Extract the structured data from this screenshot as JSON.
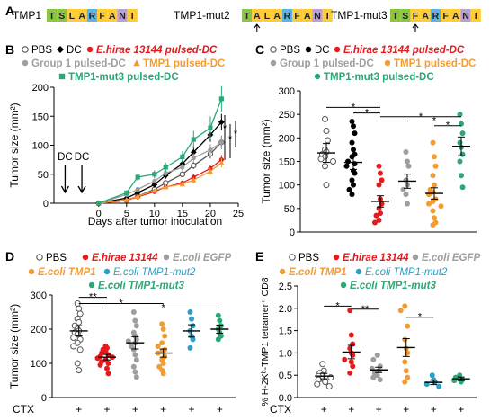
{
  "panel_letters": [
    "A",
    "B",
    "C",
    "D",
    "E"
  ],
  "panel_a": {
    "peptides": [
      {
        "name": "TMP1",
        "residues": [
          "T",
          "S",
          "L",
          "A",
          "R",
          "F",
          "A",
          "N",
          "I"
        ],
        "mutated_index": null
      },
      {
        "name": "TMP1-mut2",
        "residues": [
          "T",
          "A",
          "L",
          "A",
          "R",
          "F",
          "A",
          "N",
          "I"
        ],
        "mutated_index": 1
      },
      {
        "name": "TMP1-mut3",
        "residues": [
          "T",
          "S",
          "F",
          "A",
          "R",
          "F",
          "A",
          "N",
          "I"
        ],
        "mutated_index": 2
      }
    ],
    "residue_colors": {
      "T": "#8cc63f",
      "S": "#8cc63f",
      "A": "#ffcc33",
      "L": "#ffcc33",
      "F": "#ffcc33",
      "I": "#ffcc33",
      "R": "#5ab4e8",
      "N": "#b9a0d2"
    }
  },
  "panel_b": {
    "legend": [
      {
        "label": "PBS",
        "marker": "open-circle",
        "color": "#555555",
        "style": "normal"
      },
      {
        "label": "DC",
        "marker": "filled-diamond",
        "color": "#000000",
        "style": "normal"
      },
      {
        "label": "E.hirae 13144 pulsed-DC",
        "marker": "filled-circle",
        "color": "#e41a1c",
        "style": "bold-italic"
      },
      {
        "label": "Group 1 pulsed-DC",
        "marker": "filled-circle",
        "color": "#9e9e9e",
        "style": "bold"
      },
      {
        "label": "TMP1 pulsed-DC",
        "marker": "filled-triangle",
        "color": "#f39c34",
        "style": "bold"
      },
      {
        "label": "TMP1-mut3 pulsed-DC",
        "marker": "filled-square",
        "color": "#2aa876",
        "style": "bold"
      }
    ],
    "dc_label": "DC",
    "significance": [
      "*",
      "*",
      "*"
    ]
  },
  "panel_c": {
    "legend": [
      {
        "label": "PBS",
        "marker": "open-circle",
        "color": "#555555",
        "style": "normal"
      },
      {
        "label": "DC",
        "marker": "filled-circle",
        "color": "#000000",
        "style": "normal"
      },
      {
        "label": "E.hirae 13144 pulsed-DC",
        "marker": "filled-circle",
        "color": "#e41a1c",
        "style": "bold-italic"
      },
      {
        "label": "Group 1 pulsed-DC",
        "marker": "filled-circle",
        "color": "#9e9e9e",
        "style": "bold"
      },
      {
        "label": "TMP1 pulsed-DC",
        "marker": "filled-circle",
        "color": "#f39c34",
        "style": "bold"
      },
      {
        "label": "TMP1-mut3 pulsed-DC",
        "marker": "filled-circle",
        "color": "#2aa876",
        "style": "bold"
      }
    ],
    "significance": [
      "*",
      "*",
      "*",
      "*",
      "*"
    ]
  },
  "panel_d": {
    "legend": [
      {
        "label": "PBS",
        "marker": "open-circle",
        "color": "#555555",
        "style": "normal"
      },
      {
        "label": "E.hirae 13144",
        "marker": "filled-circle",
        "color": "#e41a1c",
        "style": "bold-italic"
      },
      {
        "label": "E.coli EGFP",
        "marker": "filled-circle",
        "color": "#9e9e9e",
        "style": "bold-italic"
      },
      {
        "label": "E.coli TMP1",
        "marker": "filled-circle",
        "color": "#f39c34",
        "style": "bold-italic"
      },
      {
        "label": "E.coli TMP1-mut2",
        "marker": "filled-circle",
        "color": "#2b9fc4",
        "style": "italic"
      },
      {
        "label": "E.coli TMP1-mut3",
        "marker": "filled-circle",
        "color": "#2aa876",
        "style": "bold-italic"
      }
    ],
    "significance": [
      "**",
      "*",
      "*"
    ],
    "ctx_label": "CTX",
    "ctx_marks": [
      "+",
      "+",
      "+",
      "+",
      "+",
      "+"
    ]
  },
  "panel_e": {
    "legend": [
      {
        "label": "PBS",
        "marker": "open-circle",
        "color": "#555555",
        "style": "normal"
      },
      {
        "label": "E.hirae 13144",
        "marker": "filled-circle",
        "color": "#e41a1c",
        "style": "bold-italic"
      },
      {
        "label": "E.coli EGFP",
        "marker": "filled-circle",
        "color": "#9e9e9e",
        "style": "bold-italic"
      },
      {
        "label": "E.coli TMP1",
        "marker": "filled-circle",
        "color": "#f39c34",
        "style": "bold-italic"
      },
      {
        "label": "E.coli TMP1-mut2",
        "marker": "filled-circle",
        "color": "#2b9fc4",
        "style": "italic"
      },
      {
        "label": "E.coli TMP1-mut3",
        "marker": "filled-circle",
        "color": "#2aa876",
        "style": "bold-italic"
      }
    ],
    "significance": [
      "*",
      "**",
      "*"
    ],
    "ctx_label": "CTX",
    "ctx_marks": [
      "+",
      "+",
      "+",
      "+",
      "+",
      "+"
    ]
  },
  "chart_data": [
    {
      "panel": "B",
      "type": "line",
      "xlabel": "Days after tumor inoculation",
      "ylabel": "Tumor size (mm²)",
      "xlim": [
        -8,
        25
      ],
      "ylim": [
        0,
        200
      ],
      "xticks": [
        0,
        5,
        10,
        15,
        20,
        25
      ],
      "yticks": [
        0,
        50,
        100,
        150,
        200
      ],
      "dc_injection_days": [
        -6,
        -3
      ],
      "series": [
        {
          "name": "PBS",
          "color": "#555555",
          "x": [
            0,
            5,
            7,
            10,
            12,
            15,
            17,
            20,
            22
          ],
          "y": [
            0,
            5,
            12,
            24,
            35,
            50,
            65,
            85,
            105
          ],
          "err": [
            0,
            1,
            2,
            3,
            4,
            5,
            6,
            8,
            10
          ]
        },
        {
          "name": "DC",
          "color": "#000000",
          "x": [
            0,
            5,
            7,
            10,
            12,
            15,
            17,
            20,
            22
          ],
          "y": [
            0,
            9,
            18,
            32,
            48,
            68,
            88,
            118,
            140
          ],
          "err": [
            0,
            2,
            3,
            4,
            6,
            8,
            10,
            12,
            14
          ]
        },
        {
          "name": "E.hirae 13144 pulsed-DC",
          "color": "#e41a1c",
          "x": [
            0,
            5,
            7,
            10,
            12,
            15,
            17,
            20,
            22
          ],
          "y": [
            0,
            5,
            11,
            20,
            28,
            35,
            45,
            60,
            75
          ],
          "err": [
            0,
            1,
            2,
            3,
            3,
            4,
            5,
            6,
            8
          ]
        },
        {
          "name": "Group 1 pulsed-DC",
          "color": "#9e9e9e",
          "x": [
            0,
            5,
            7,
            10,
            12,
            15,
            17,
            20,
            22
          ],
          "y": [
            0,
            15,
            24,
            38,
            52,
            62,
            78,
            92,
            105
          ],
          "err": [
            0,
            2,
            3,
            4,
            5,
            6,
            8,
            10,
            12
          ]
        },
        {
          "name": "TMP1 pulsed-DC",
          "color": "#f39c34",
          "x": [
            0,
            5,
            7,
            10,
            12,
            15,
            17,
            20,
            22
          ],
          "y": [
            0,
            6,
            12,
            22,
            28,
            33,
            40,
            55,
            70
          ],
          "err": [
            0,
            1,
            2,
            2,
            3,
            4,
            4,
            6,
            8
          ]
        },
        {
          "name": "TMP1-mut3 pulsed-DC",
          "color": "#2aa876",
          "x": [
            0,
            5,
            7,
            10,
            12,
            15,
            17,
            20,
            22
          ],
          "y": [
            0,
            18,
            45,
            50,
            62,
            80,
            110,
            130,
            180
          ],
          "err": [
            0,
            3,
            6,
            7,
            8,
            10,
            15,
            20,
            22
          ]
        }
      ]
    },
    {
      "panel": "C",
      "type": "scatter",
      "ylabel": "Tumor size (mm²)",
      "ylim": [
        0,
        300
      ],
      "yticks": [
        0,
        50,
        100,
        150,
        200,
        250,
        300
      ],
      "groups": [
        {
          "name": "PBS",
          "color": "#555555",
          "open": true,
          "mean": 168,
          "sem": 20,
          "values": [
            240,
            215,
            195,
            175,
            170,
            165,
            160,
            155,
            150,
            140,
            100
          ]
        },
        {
          "name": "DC",
          "color": "#000000",
          "open": false,
          "mean": 148,
          "sem": 15,
          "values": [
            235,
            225,
            210,
            190,
            175,
            165,
            160,
            150,
            145,
            140,
            130,
            125,
            110,
            100,
            90,
            80
          ]
        },
        {
          "name": "E.hirae 13144 pulsed-DC",
          "color": "#e41a1c",
          "open": false,
          "mean": 65,
          "sem": 12,
          "values": [
            140,
            125,
            110,
            100,
            70,
            60,
            50,
            40,
            35,
            25,
            20
          ]
        },
        {
          "name": "Group 1 pulsed-DC",
          "color": "#9e9e9e",
          "open": false,
          "mean": 108,
          "sem": 15,
          "values": [
            170,
            150,
            140,
            110,
            100,
            90,
            80,
            60
          ]
        },
        {
          "name": "TMP1 pulsed-DC",
          "color": "#f39c34",
          "open": false,
          "mean": 82,
          "sem": 12,
          "values": [
            190,
            160,
            140,
            120,
            100,
            90,
            85,
            80,
            70,
            65,
            60,
            55,
            45,
            30,
            20,
            15
          ]
        },
        {
          "name": "TMP1-mut3 pulsed-DC",
          "color": "#2aa876",
          "open": false,
          "mean": 182,
          "sem": 20,
          "values": [
            250,
            230,
            210,
            190,
            180,
            165,
            150,
            120,
            95
          ]
        }
      ]
    },
    {
      "panel": "D",
      "type": "scatter",
      "ylabel": "Tumor size (mm²)",
      "ylim": [
        0,
        300
      ],
      "yticks": [
        0,
        100,
        200,
        300
      ],
      "groups": [
        {
          "name": "PBS",
          "color": "#555555",
          "open": true,
          "mean": 195,
          "sem": 15,
          "values": [
            275,
            260,
            245,
            230,
            220,
            210,
            200,
            195,
            190,
            185,
            175,
            170,
            160,
            150,
            140,
            100,
            80
          ]
        },
        {
          "name": "E.hirae 13144",
          "color": "#e41a1c",
          "open": false,
          "mean": 118,
          "sem": 8,
          "values": [
            150,
            145,
            140,
            135,
            130,
            125,
            120,
            118,
            115,
            110,
            105,
            100,
            95,
            85,
            70
          ]
        },
        {
          "name": "E.coli EGFP",
          "color": "#9e9e9e",
          "open": false,
          "mean": 160,
          "sem": 18,
          "values": [
            250,
            225,
            210,
            190,
            180,
            170,
            165,
            160,
            150,
            140,
            125,
            110,
            90,
            75,
            60
          ]
        },
        {
          "name": "E.coli TMP1",
          "color": "#f39c34",
          "open": false,
          "mean": 130,
          "sem": 12,
          "values": [
            215,
            200,
            180,
            160,
            150,
            140,
            135,
            130,
            120,
            110,
            100,
            90,
            80,
            70
          ]
        },
        {
          "name": "E.coli TMP1-mut2",
          "color": "#2b9fc4",
          "open": false,
          "mean": 195,
          "sem": 18,
          "values": [
            250,
            230,
            210,
            195,
            180,
            170,
            145
          ]
        },
        {
          "name": "E.coli TMP1-mut3",
          "color": "#2aa876",
          "open": false,
          "mean": 200,
          "sem": 12,
          "values": [
            240,
            225,
            210,
            200,
            190,
            180,
            170
          ]
        }
      ]
    },
    {
      "panel": "E",
      "type": "scatter",
      "ylabel": "% H-2Kᵇ-TMP1 tetramer⁺ CD8",
      "ylim": [
        0,
        2.5
      ],
      "yticks": [
        0.0,
        0.5,
        1.0,
        1.5,
        2.0,
        2.5
      ],
      "groups": [
        {
          "name": "PBS",
          "color": "#555555",
          "open": true,
          "mean": 0.48,
          "sem": 0.06,
          "values": [
            0.75,
            0.6,
            0.55,
            0.5,
            0.48,
            0.45,
            0.42,
            0.4,
            0.35,
            0.3,
            0.25
          ]
        },
        {
          "name": "E.hirae 13144",
          "color": "#e41a1c",
          "open": false,
          "mean": 1.02,
          "sem": 0.15,
          "values": [
            1.95,
            1.4,
            1.2,
            1.1,
            1.0,
            0.95,
            0.85,
            0.8,
            0.7,
            0.55
          ]
        },
        {
          "name": "E.coli EGFP",
          "color": "#9e9e9e",
          "open": false,
          "mean": 0.62,
          "sem": 0.06,
          "values": [
            0.95,
            0.85,
            0.7,
            0.65,
            0.6,
            0.55,
            0.5,
            0.45,
            0.4
          ]
        },
        {
          "name": "E.coli TMP1",
          "color": "#f39c34",
          "open": false,
          "mean": 1.12,
          "sem": 0.2,
          "values": [
            2.05,
            1.95,
            1.6,
            1.3,
            1.1,
            1.0,
            0.8,
            0.6,
            0.45,
            0.35
          ]
        },
        {
          "name": "E.coli TMP1-mut2",
          "color": "#2b9fc4",
          "open": false,
          "mean": 0.34,
          "sem": 0.05,
          "values": [
            0.5,
            0.4,
            0.35,
            0.3,
            0.25
          ]
        },
        {
          "name": "E.coli TMP1-mut3",
          "color": "#2aa876",
          "open": false,
          "mean": 0.42,
          "sem": 0.04,
          "values": [
            0.5,
            0.45,
            0.4,
            0.38,
            0.35
          ]
        }
      ]
    }
  ]
}
